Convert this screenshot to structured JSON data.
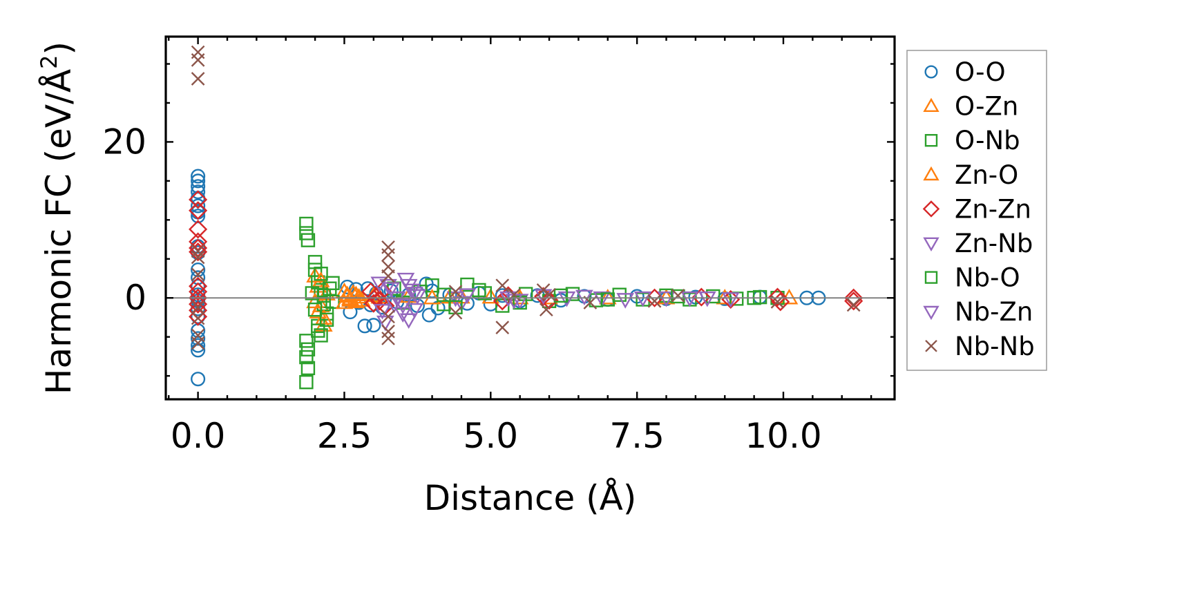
{
  "chart_data": {
    "type": "scatter",
    "title": "",
    "xlabel": "Distance (Å)",
    "ylabel": "Harmonic FC (eV/Å²)",
    "ylabel_parts": {
      "main": "Harmonic FC (eV/Å",
      "sup": "2",
      "end": ")"
    },
    "xlim": [
      -0.55,
      11.9
    ],
    "ylim": [
      -13,
      33.5
    ],
    "xticks": [
      0.0,
      2.5,
      5.0,
      7.5,
      10.0
    ],
    "xtick_labels": [
      "0.0",
      "2.5",
      "5.0",
      "7.5",
      "10.0"
    ],
    "yticks": [
      0,
      20
    ],
    "ytick_labels": [
      "0",
      "20"
    ],
    "zero_line": true,
    "grid": false,
    "legend_position": "outside-right",
    "series": [
      {
        "name": "O-O",
        "marker": "circle",
        "color": "#1f77b4",
        "points": [
          [
            0.0,
            15.6
          ],
          [
            0.0,
            15.0
          ],
          [
            0.0,
            14.3
          ],
          [
            0.0,
            13.6
          ],
          [
            0.0,
            12.8
          ],
          [
            0.0,
            11.8
          ],
          [
            0.0,
            11.0
          ],
          [
            0.0,
            10.5
          ],
          [
            0.0,
            6.6
          ],
          [
            0.0,
            5.8
          ],
          [
            0.0,
            3.6
          ],
          [
            0.0,
            2.6
          ],
          [
            0.0,
            1.5
          ],
          [
            0.0,
            0.4
          ],
          [
            0.0,
            -0.4
          ],
          [
            0.0,
            -1.4
          ],
          [
            0.0,
            -2.4
          ],
          [
            0.0,
            -4.2
          ],
          [
            0.0,
            -5.2
          ],
          [
            0.0,
            -6.1
          ],
          [
            0.0,
            -6.7
          ],
          [
            0.0,
            -10.4
          ],
          [
            2.55,
            1.4
          ],
          [
            2.6,
            -1.8
          ],
          [
            2.7,
            1.1
          ],
          [
            2.75,
            -0.6
          ],
          [
            2.85,
            -3.6
          ],
          [
            2.9,
            1.2
          ],
          [
            2.95,
            -0.9
          ],
          [
            3.0,
            -3.5
          ],
          [
            3.05,
            0.6
          ],
          [
            3.15,
            -1.2
          ],
          [
            3.3,
            0.9
          ],
          [
            3.4,
            -0.5
          ],
          [
            3.6,
            0.4
          ],
          [
            3.75,
            -1.0
          ],
          [
            3.9,
            1.8
          ],
          [
            3.95,
            -2.2
          ],
          [
            4.0,
            0.9
          ],
          [
            4.1,
            -1.3
          ],
          [
            4.3,
            0.4
          ],
          [
            4.6,
            -0.7
          ],
          [
            4.8,
            0.6
          ],
          [
            5.0,
            -0.8
          ],
          [
            5.2,
            0.3
          ],
          [
            5.5,
            -0.4
          ],
          [
            5.8,
            0.3
          ],
          [
            6.2,
            -0.3
          ],
          [
            6.6,
            0.2
          ],
          [
            7.0,
            -0.2
          ],
          [
            7.5,
            0.2
          ],
          [
            8.0,
            -0.1
          ],
          [
            8.5,
            0.1
          ],
          [
            9.0,
            -0.1
          ],
          [
            9.6,
            0.1
          ],
          [
            10.4,
            0.0
          ],
          [
            10.6,
            0.0
          ]
        ]
      },
      {
        "name": "O-Zn",
        "marker": "triangle-up",
        "color": "#ff7f0e",
        "points": [
          [
            2.0,
            2.8
          ],
          [
            2.05,
            1.5
          ],
          [
            2.1,
            -1.0
          ],
          [
            2.15,
            -3.5
          ],
          [
            2.2,
            0.5
          ],
          [
            2.5,
            0.8
          ],
          [
            2.55,
            0.2
          ],
          [
            2.6,
            -0.3
          ],
          [
            2.65,
            0.6
          ],
          [
            2.7,
            -0.5
          ],
          [
            2.75,
            0.1
          ],
          [
            3.0,
            0.3
          ],
          [
            3.6,
            0.2
          ],
          [
            4.3,
            0.1
          ],
          [
            5.0,
            0.1
          ],
          [
            6.0,
            0.0
          ],
          [
            7.0,
            0.0
          ],
          [
            8.0,
            0.0
          ],
          [
            9.0,
            0.0
          ],
          [
            10.1,
            0.0
          ]
        ]
      },
      {
        "name": "O-Nb",
        "marker": "square",
        "color": "#2ca02c",
        "points": [
          [
            1.85,
            9.5
          ],
          [
            1.85,
            8.3
          ],
          [
            1.88,
            7.4
          ],
          [
            1.85,
            -5.5
          ],
          [
            1.88,
            -6.6
          ],
          [
            1.85,
            -7.6
          ],
          [
            1.88,
            -9.0
          ],
          [
            1.85,
            -10.8
          ],
          [
            2.0,
            4.6
          ],
          [
            2.0,
            3.6
          ],
          [
            2.05,
            -3.6
          ],
          [
            2.1,
            -4.8
          ],
          [
            2.05,
            2.0
          ],
          [
            2.1,
            1.0
          ],
          [
            2.15,
            -0.8
          ],
          [
            2.2,
            -2.0
          ],
          [
            2.3,
            1.9
          ],
          [
            2.3,
            -0.5
          ],
          [
            3.35,
            1.2
          ],
          [
            3.5,
            -0.6
          ],
          [
            3.8,
            0.8
          ],
          [
            4.0,
            1.6
          ],
          [
            4.2,
            -0.8
          ],
          [
            4.6,
            1.7
          ],
          [
            4.9,
            0.6
          ],
          [
            5.2,
            -1.0
          ],
          [
            5.6,
            0.5
          ],
          [
            6.0,
            -0.4
          ],
          [
            6.4,
            0.5
          ],
          [
            6.8,
            -0.3
          ],
          [
            7.2,
            0.4
          ],
          [
            7.6,
            -0.2
          ],
          [
            8.0,
            0.3
          ],
          [
            8.4,
            -0.2
          ],
          [
            8.8,
            0.2
          ],
          [
            9.2,
            -0.1
          ],
          [
            9.6,
            0.1
          ],
          [
            9.9,
            0.0
          ]
        ]
      },
      {
        "name": "Zn-O",
        "marker": "triangle-up",
        "color": "#ff7f0e",
        "points": [
          [
            2.0,
            -0.5
          ],
          [
            2.05,
            -1.8
          ],
          [
            2.1,
            2.2
          ],
          [
            2.15,
            -2.6
          ],
          [
            2.5,
            -0.6
          ],
          [
            2.55,
            0.4
          ],
          [
            2.6,
            -0.1
          ],
          [
            2.7,
            0.4
          ],
          [
            2.8,
            -0.3
          ],
          [
            3.1,
            0.1
          ],
          [
            4.0,
            0.0
          ],
          [
            4.5,
            0.1
          ],
          [
            5.5,
            0.0
          ]
        ]
      },
      {
        "name": "Zn-Zn",
        "marker": "diamond",
        "color": "#d62728",
        "points": [
          [
            0.0,
            12.6
          ],
          [
            0.0,
            11.2
          ],
          [
            0.0,
            8.8
          ],
          [
            0.0,
            7.2
          ],
          [
            0.0,
            6.4
          ],
          [
            0.0,
            5.9
          ],
          [
            0.0,
            1.5
          ],
          [
            0.0,
            0.8
          ],
          [
            0.0,
            0.0
          ],
          [
            0.0,
            -0.8
          ],
          [
            0.0,
            -1.6
          ],
          [
            0.0,
            -2.4
          ],
          [
            2.95,
            0.8
          ],
          [
            3.0,
            -0.7
          ],
          [
            3.05,
            0.2
          ],
          [
            3.1,
            -0.4
          ],
          [
            3.15,
            0.9
          ],
          [
            3.2,
            -1.0
          ],
          [
            5.2,
            -0.4
          ],
          [
            5.3,
            0.3
          ],
          [
            5.9,
            0.2
          ],
          [
            6.0,
            -0.3
          ],
          [
            7.8,
            0.0
          ],
          [
            8.6,
            0.1
          ],
          [
            9.1,
            -0.2
          ],
          [
            9.9,
            0.1
          ],
          [
            9.95,
            -0.5
          ],
          [
            11.2,
            0.0
          ],
          [
            11.2,
            -0.4
          ]
        ]
      },
      {
        "name": "Zn-Nb",
        "marker": "triangle-down",
        "color": "#9467bd",
        "points": [
          [
            3.1,
            1.9
          ],
          [
            3.15,
            -1.6
          ],
          [
            3.2,
            -3.1
          ],
          [
            3.3,
            1.2
          ],
          [
            3.4,
            0.0
          ],
          [
            3.5,
            -0.9
          ],
          [
            3.55,
            2.4
          ],
          [
            3.6,
            -2.8
          ],
          [
            3.65,
            1.0
          ],
          [
            3.7,
            -1.5
          ],
          [
            3.75,
            0.3
          ],
          [
            4.4,
            0.0
          ],
          [
            4.5,
            -0.6
          ],
          [
            5.3,
            0.0
          ],
          [
            5.5,
            -0.3
          ],
          [
            5.9,
            0.3
          ],
          [
            6.3,
            0.0
          ],
          [
            6.9,
            0.0
          ],
          [
            7.3,
            -0.2
          ],
          [
            8.0,
            0.0
          ],
          [
            8.7,
            0.0
          ],
          [
            9.1,
            -0.1
          ]
        ]
      },
      {
        "name": "Nb-O",
        "marker": "square",
        "color": "#2ca02c",
        "points": [
          [
            1.95,
            0.6
          ],
          [
            2.0,
            -1.5
          ],
          [
            2.05,
            -4.2
          ],
          [
            2.1,
            3.1
          ],
          [
            2.15,
            0.3
          ],
          [
            2.2,
            -2.8
          ],
          [
            2.25,
            1.2
          ],
          [
            4.2,
            0.4
          ],
          [
            4.4,
            -1.2
          ],
          [
            4.8,
            1.0
          ],
          [
            5.5,
            -0.6
          ],
          [
            6.2,
            0.3
          ],
          [
            7.0,
            -0.2
          ],
          [
            8.2,
            0.2
          ],
          [
            9.5,
            0.0
          ]
        ]
      },
      {
        "name": "Nb-Zn",
        "marker": "triangle-down",
        "color": "#9467bd",
        "points": [
          [
            3.25,
            1.6
          ],
          [
            3.35,
            -0.8
          ],
          [
            3.5,
            -2.0
          ],
          [
            3.6,
            1.6
          ],
          [
            3.7,
            0.6
          ],
          [
            4.6,
            0.4
          ],
          [
            5.4,
            -0.3
          ],
          [
            6.6,
            0.2
          ],
          [
            7.6,
            0.0
          ],
          [
            8.4,
            0.0
          ]
        ]
      },
      {
        "name": "Nb-Nb",
        "marker": "cross",
        "color": "#8c564b",
        "points": [
          [
            0.0,
            31.5
          ],
          [
            0.0,
            30.5
          ],
          [
            0.0,
            28.1
          ],
          [
            0.0,
            6.0
          ],
          [
            0.0,
            5.2
          ],
          [
            0.0,
            3.0
          ],
          [
            0.0,
            -1.2
          ],
          [
            0.0,
            -2.6
          ],
          [
            0.0,
            -4.8
          ],
          [
            0.0,
            -5.8
          ],
          [
            3.25,
            6.5
          ],
          [
            3.25,
            5.5
          ],
          [
            3.25,
            4.0
          ],
          [
            3.25,
            2.8
          ],
          [
            3.25,
            -2.4
          ],
          [
            3.25,
            -4.3
          ],
          [
            3.25,
            -5.2
          ],
          [
            4.4,
            0.8
          ],
          [
            4.4,
            -1.9
          ],
          [
            5.2,
            1.6
          ],
          [
            5.2,
            -3.8
          ],
          [
            5.4,
            0.4
          ],
          [
            5.9,
            1.0
          ],
          [
            5.95,
            -1.5
          ],
          [
            6.0,
            0.4
          ],
          [
            6.7,
            -0.6
          ],
          [
            7.8,
            -0.4
          ],
          [
            8.2,
            0.3
          ],
          [
            9.9,
            -0.5
          ],
          [
            11.2,
            -0.9
          ]
        ]
      }
    ]
  }
}
